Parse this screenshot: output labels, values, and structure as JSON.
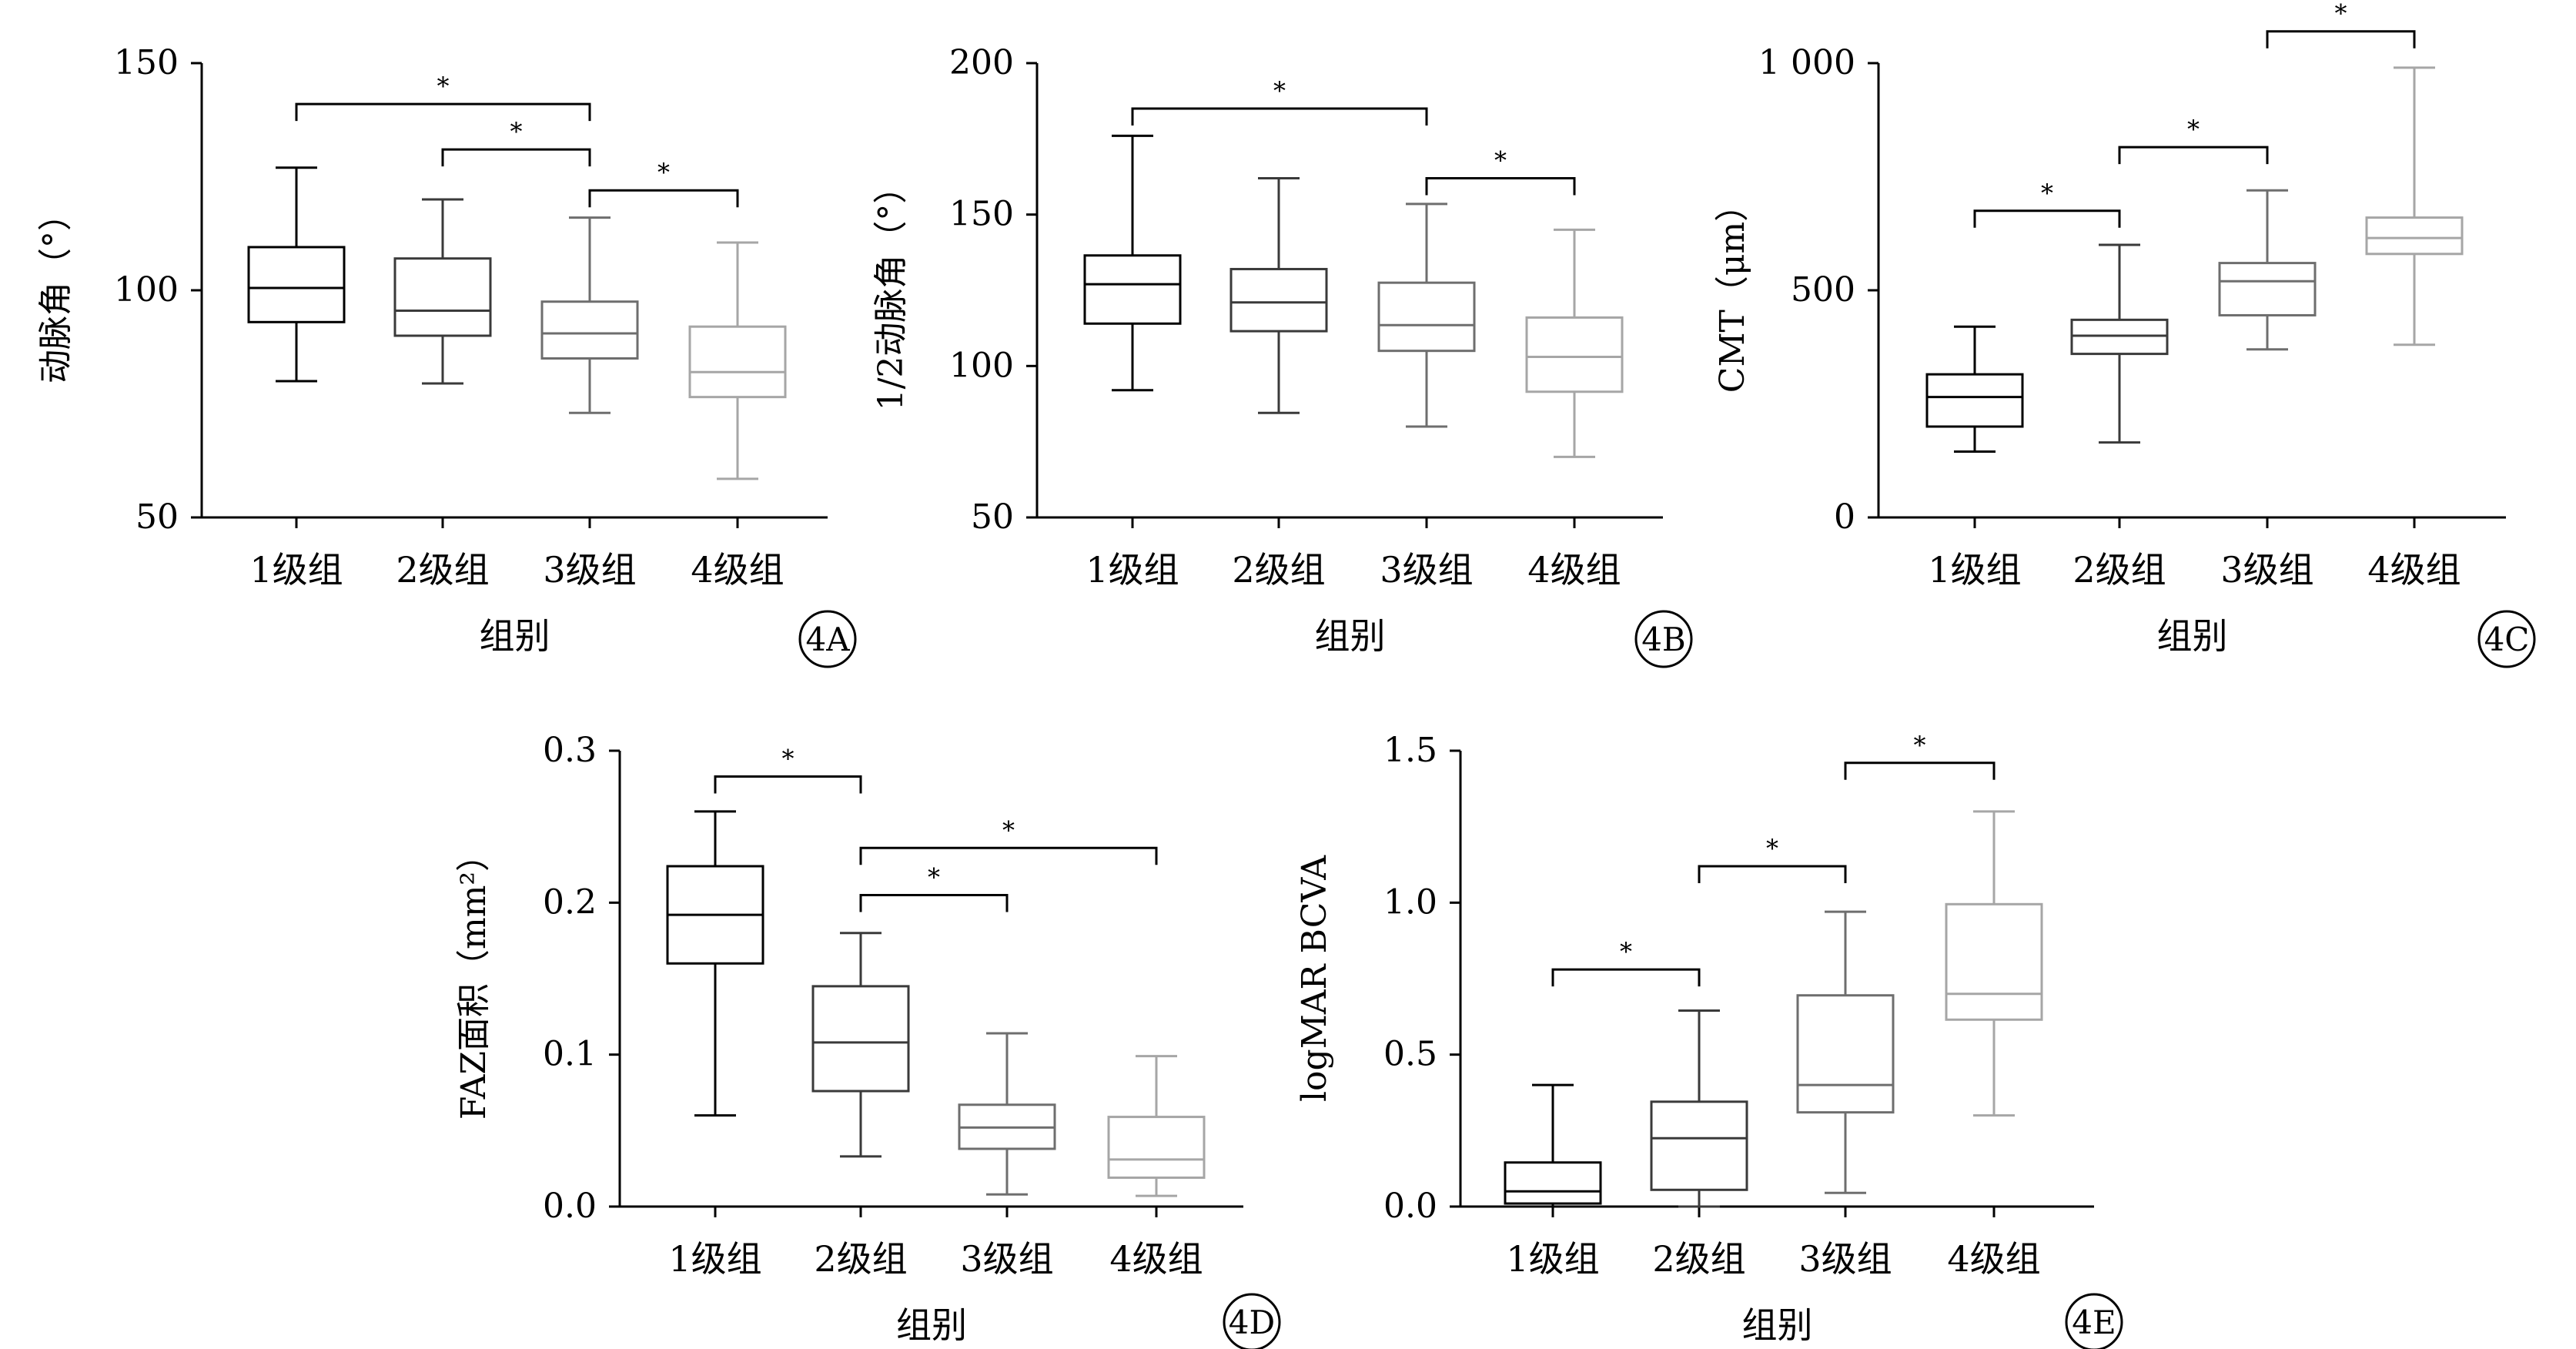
{
  "chart_data": [
    {
      "type": "box",
      "panel": "4A",
      "ylabel": "动脉角（°）",
      "xlabel": "组别",
      "categories": [
        "1级组",
        "2级组",
        "3级组",
        "4级组"
      ],
      "ylim": [
        50,
        150
      ],
      "yticks": [
        50,
        100,
        150
      ],
      "ytick_labels": [
        "50",
        "100",
        "150"
      ],
      "boxes": [
        {
          "min": 80,
          "q1": 93,
          "median": 100.5,
          "q3": 109.5,
          "max": 127,
          "color": "#000000"
        },
        {
          "min": 79.5,
          "q1": 90,
          "median": 95.5,
          "q3": 107,
          "max": 120,
          "color": "#3a3a3a"
        },
        {
          "min": 73,
          "q1": 85,
          "median": 90.5,
          "q3": 97.5,
          "max": 116,
          "color": "#6e6e6e"
        },
        {
          "min": 58.5,
          "q1": 76.5,
          "median": 82,
          "q3": 92,
          "max": 110.5,
          "color": "#a6a6a6"
        }
      ],
      "significance": [
        {
          "from": 0,
          "to": 2,
          "y": 141,
          "label": "*"
        },
        {
          "from": 1,
          "to": 2,
          "y": 131,
          "label": "*"
        },
        {
          "from": 2,
          "to": 3,
          "y": 122,
          "label": "*"
        }
      ]
    },
    {
      "type": "box",
      "panel": "4B",
      "ylabel": "1/2动脉角（°）",
      "xlabel": "组别",
      "categories": [
        "1级组",
        "2级组",
        "3级组",
        "4级组"
      ],
      "ylim": [
        50,
        200
      ],
      "yticks": [
        50,
        100,
        150,
        200
      ],
      "ytick_labels": [
        "50",
        "100",
        "150",
        "200"
      ],
      "boxes": [
        {
          "min": 92,
          "q1": 114,
          "median": 127,
          "q3": 136.5,
          "max": 176,
          "color": "#000000"
        },
        {
          "min": 84.5,
          "q1": 111.5,
          "median": 121,
          "q3": 132,
          "max": 162,
          "color": "#3a3a3a"
        },
        {
          "min": 80,
          "q1": 105,
          "median": 113.5,
          "q3": 127.5,
          "max": 153.5,
          "color": "#6e6e6e"
        },
        {
          "min": 70,
          "q1": 91.5,
          "median": 103,
          "q3": 116,
          "max": 145,
          "color": "#a6a6a6"
        }
      ],
      "significance": [
        {
          "from": 0,
          "to": 2,
          "y": 185,
          "label": "*"
        },
        {
          "from": 2,
          "to": 3,
          "y": 162,
          "label": "*"
        }
      ]
    },
    {
      "type": "box",
      "panel": "4C",
      "ylabel": "CMT（μm）",
      "xlabel": "组别",
      "categories": [
        "1级组",
        "2级组",
        "3级组",
        "4级组"
      ],
      "ylim": [
        0,
        1000
      ],
      "yticks": [
        0,
        500,
        1000
      ],
      "ytick_labels": [
        "0",
        "500",
        "1 000"
      ],
      "boxes": [
        {
          "min": 145,
          "q1": 200,
          "median": 265,
          "q3": 315,
          "max": 420,
          "color": "#000000"
        },
        {
          "min": 165,
          "q1": 360,
          "median": 400,
          "q3": 435,
          "max": 600,
          "color": "#3a3a3a"
        },
        {
          "min": 370,
          "q1": 445,
          "median": 520,
          "q3": 560,
          "max": 720,
          "color": "#6e6e6e"
        },
        {
          "min": 380,
          "q1": 580,
          "median": 615,
          "q3": 660,
          "max": 990,
          "color": "#a6a6a6"
        }
      ],
      "significance": [
        {
          "from": 0,
          "to": 1,
          "y": 675,
          "label": "*"
        },
        {
          "from": 1,
          "to": 2,
          "y": 815,
          "label": "*"
        },
        {
          "from": 2,
          "to": 3,
          "y": 1070,
          "label": "*"
        }
      ]
    },
    {
      "type": "box",
      "panel": "4D",
      "ylabel": "FAZ面积（mm²）",
      "xlabel": "组别",
      "categories": [
        "1级组",
        "2级组",
        "3级组",
        "4级组"
      ],
      "ylim": [
        0,
        0.3
      ],
      "yticks": [
        0,
        0.1,
        0.2,
        0.3
      ],
      "ytick_labels": [
        "0.0",
        "0.1",
        "0.2",
        "0.3"
      ],
      "boxes": [
        {
          "min": 0.06,
          "q1": 0.16,
          "median": 0.192,
          "q3": 0.224,
          "max": 0.26,
          "color": "#000000"
        },
        {
          "min": 0.033,
          "q1": 0.076,
          "median": 0.108,
          "q3": 0.145,
          "max": 0.18,
          "color": "#3a3a3a"
        },
        {
          "min": 0.008,
          "q1": 0.038,
          "median": 0.052,
          "q3": 0.067,
          "max": 0.114,
          "color": "#6e6e6e"
        },
        {
          "min": 0.007,
          "q1": 0.019,
          "median": 0.031,
          "q3": 0.059,
          "max": 0.099,
          "color": "#a6a6a6"
        }
      ],
      "significance": [
        {
          "from": 0,
          "to": 1,
          "y": 0.283,
          "label": "*"
        },
        {
          "from": 1,
          "to": 3,
          "y": 0.236,
          "label": "*"
        },
        {
          "from": 1,
          "to": 2,
          "y": 0.205,
          "label": "*"
        }
      ]
    },
    {
      "type": "box",
      "panel": "4E",
      "ylabel": "logMAR BCVA",
      "xlabel": "组别",
      "categories": [
        "1级组",
        "2级组",
        "3级组",
        "4级组"
      ],
      "ylim": [
        0,
        1.5
      ],
      "yticks": [
        0,
        0.5,
        1.0,
        1.5
      ],
      "ytick_labels": [
        "0.0",
        "0.5",
        "1.0",
        "1.5"
      ],
      "boxes": [
        {
          "min": 0.0,
          "q1": 0.01,
          "median": 0.05,
          "q3": 0.145,
          "max": 0.4,
          "color": "#000000"
        },
        {
          "min": 0.0,
          "q1": 0.055,
          "median": 0.225,
          "q3": 0.345,
          "max": 0.645,
          "color": "#3a3a3a"
        },
        {
          "min": 0.045,
          "q1": 0.31,
          "median": 0.4,
          "q3": 0.695,
          "max": 0.97,
          "color": "#6e6e6e"
        },
        {
          "min": 0.3,
          "q1": 0.615,
          "median": 0.7,
          "q3": 0.995,
          "max": 1.3,
          "color": "#a6a6a6"
        }
      ],
      "significance": [
        {
          "from": 0,
          "to": 1,
          "y": 0.78,
          "label": "*"
        },
        {
          "from": 1,
          "to": 2,
          "y": 1.12,
          "label": "*"
        },
        {
          "from": 2,
          "to": 3,
          "y": 1.46,
          "label": "*"
        }
      ]
    }
  ]
}
